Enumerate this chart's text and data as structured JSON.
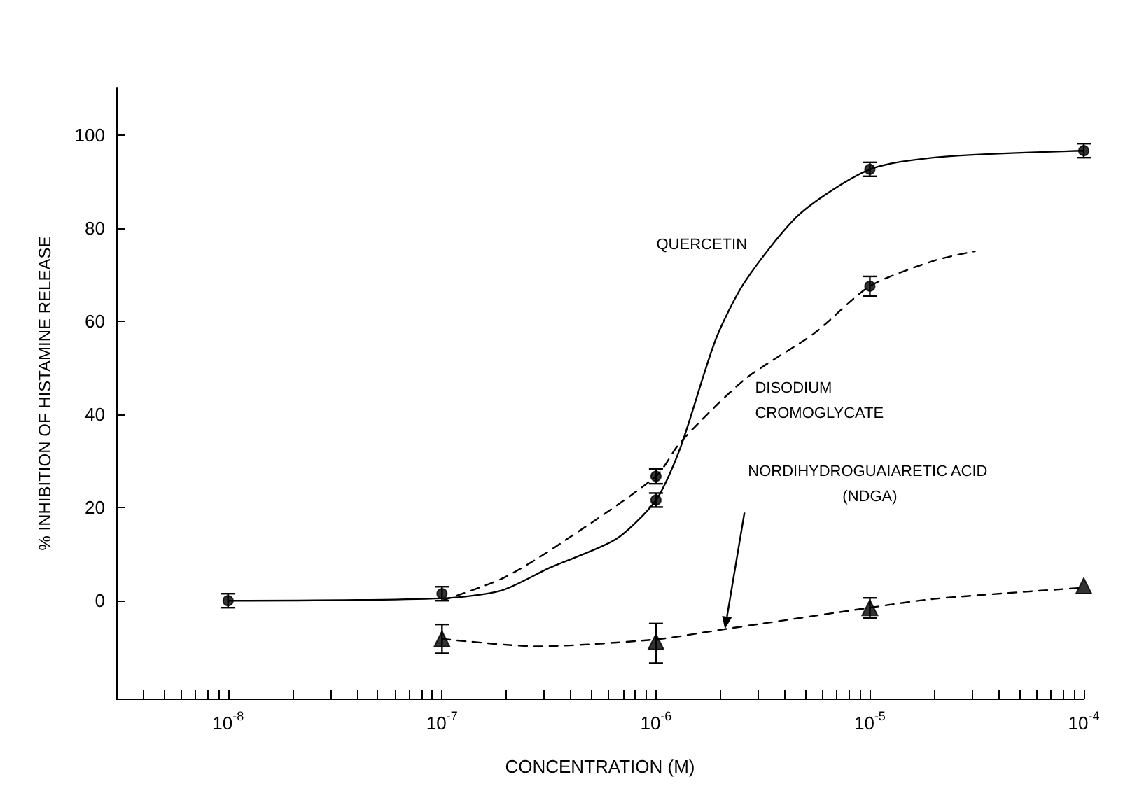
{
  "chart_data": {
    "type": "scatter",
    "xlabel": "CONCENTRATION (M)",
    "ylabel": "% INHIBITION OF HISTAMINE RELEASE",
    "log": "x",
    "grid": false,
    "legend": false,
    "xlim": [
      3e-09,
      0.0001
    ],
    "ylim": [
      -21,
      110
    ],
    "xticks": [
      {
        "value": 4e-09,
        "label": null
      },
      {
        "value": 5e-09,
        "label": null
      },
      {
        "value": 6e-09,
        "label": null
      },
      {
        "value": 7e-09,
        "label": null
      },
      {
        "value": 8e-09,
        "label": null
      },
      {
        "value": 9e-09,
        "label": null
      },
      {
        "value": 1e-08,
        "label": "10$^{-8}$"
      },
      {
        "value": 2e-08,
        "label": null
      },
      {
        "value": 3e-08,
        "label": null
      },
      {
        "value": 4e-08,
        "label": null
      },
      {
        "value": 5e-08,
        "label": null
      },
      {
        "value": 6e-08,
        "label": null
      },
      {
        "value": 7e-08,
        "label": null
      },
      {
        "value": 8e-08,
        "label": null
      },
      {
        "value": 9e-08,
        "label": null
      },
      {
        "value": 1e-07,
        "label": "10$^{-7}$"
      },
      {
        "value": 2e-07,
        "label": null
      },
      {
        "value": 3e-07,
        "label": null
      },
      {
        "value": 4e-07,
        "label": null
      },
      {
        "value": 5e-07,
        "label": null
      },
      {
        "value": 6e-07,
        "label": null
      },
      {
        "value": 7e-07,
        "label": null
      },
      {
        "value": 8e-07,
        "label": null
      },
      {
        "value": 9e-07,
        "label": null
      },
      {
        "value": 1e-06,
        "label": "10$^{-6}$"
      },
      {
        "value": 2e-06,
        "label": null
      },
      {
        "value": 3e-06,
        "label": null
      },
      {
        "value": 4e-06,
        "label": null
      },
      {
        "value": 5e-06,
        "label": null
      },
      {
        "value": 6e-06,
        "label": null
      },
      {
        "value": 7e-06,
        "label": null
      },
      {
        "value": 8e-06,
        "label": null
      },
      {
        "value": 9e-06,
        "label": null
      },
      {
        "value": 1e-05,
        "label": "10$^{-5}$"
      },
      {
        "value": 2e-05,
        "label": null
      },
      {
        "value": 3e-05,
        "label": null
      },
      {
        "value": 4e-05,
        "label": null
      },
      {
        "value": 5e-05,
        "label": null
      },
      {
        "value": 6e-05,
        "label": null
      },
      {
        "value": 7e-05,
        "label": null
      },
      {
        "value": 8e-05,
        "label": null
      },
      {
        "value": 9e-05,
        "label": null
      },
      {
        "value": 0.0001,
        "label": "10$^{-4}$"
      }
    ],
    "yticks": [
      0,
      20,
      40,
      60,
      80,
      100
    ],
    "series": [
      {
        "marker": "circle",
        "color": "#000000",
        "x": [
          1e-08,
          1e-07,
          1e-06,
          1e-05,
          0.0001
        ],
        "values": [
          0,
          1.5,
          21.6,
          92.6,
          96.6
        ],
        "errors": [
          1.5,
          1.5,
          1.5,
          1.5,
          1.5
        ]
      },
      {
        "type": "line",
        "name": "QUERCETIN",
        "marker": "none",
        "line_style": "solid",
        "color": "#000000",
        "x": [
          1e-08,
          1e-07,
          1.9e-07,
          3.2e-07,
          6.5e-07,
          1e-06,
          1.3e-06,
          1.9e-06,
          2.6e-06,
          4.7e-06,
          1e-05,
          2.2e-05,
          0.0001
        ],
        "values": [
          0,
          0.5,
          2.2,
          7.1,
          13.2,
          21.6,
          32.8,
          56,
          68.4,
          83,
          92.6,
          95.3,
          96.6
        ]
      },
      {
        "marker": "circle",
        "color": "#000000",
        "x": [
          1e-06,
          1e-05
        ],
        "values": [
          26.7,
          67.5
        ],
        "errors": [
          1.6,
          2.1
        ]
      },
      {
        "type": "line",
        "name": "DISODIUM CROMOGLYCATE",
        "marker": "none",
        "line_style": "dashed",
        "color": "#000000",
        "x": [
          1e-07,
          1.9e-07,
          3.2e-07,
          1e-06,
          1.3e-06,
          2.6e-06,
          5.5e-06,
          1e-05,
          2e-05,
          3.1e-05
        ],
        "values": [
          0,
          4.7,
          10.8,
          26.7,
          34,
          47.5,
          57.4,
          67.5,
          73,
          75
        ]
      },
      {
        "marker": "triangle",
        "color": "#000000",
        "x": [
          1e-07,
          1e-06,
          1e-05,
          0.0001
        ],
        "values": [
          -8.2,
          -8.8,
          -1.5,
          3.2
        ],
        "errors": [
          [
            -11.3,
            -5.1
          ],
          [
            -13.4,
            -4.9
          ],
          [
            -3.7,
            0.6
          ],
          null
        ]
      },
      {
        "type": "line",
        "name": "NORDIHYDROGUAIARETIC ACID (NDGA)",
        "marker": "none",
        "line_style": "dashed",
        "color": "#000000",
        "x": [
          1e-07,
          2.8e-07,
          1e-06,
          2.1e-06,
          1e-05,
          2e-05,
          0.0001
        ],
        "values": [
          -8.2,
          -9.8,
          -8.3,
          -6.1,
          -1.5,
          0.4,
          2.8
        ]
      }
    ]
  }
}
